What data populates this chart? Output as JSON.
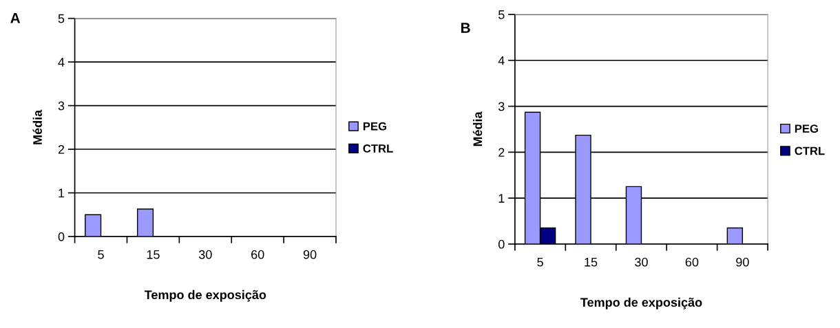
{
  "chart_data": [
    {
      "type": "bar",
      "title": "A",
      "xlabel": "Tempo de exposição",
      "ylabel": "Média",
      "categories": [
        "5",
        "15",
        "30",
        "60",
        "90"
      ],
      "series": [
        {
          "name": "PEG",
          "color": "#9999ff",
          "values": [
            0.5,
            0.63,
            0,
            0,
            0
          ]
        },
        {
          "name": "CTRL",
          "color": "#000080",
          "values": [
            0,
            0,
            0,
            0,
            0
          ]
        }
      ],
      "ylim": [
        0,
        5
      ],
      "yticks": [
        0,
        1,
        2,
        3,
        4,
        5
      ],
      "grid": "y",
      "legend": "right"
    },
    {
      "type": "bar",
      "title": "B",
      "xlabel": "Tempo de exposição",
      "ylabel": "Média",
      "categories": [
        "5",
        "15",
        "30",
        "60",
        "90"
      ],
      "series": [
        {
          "name": "PEG",
          "color": "#9999ff",
          "values": [
            2.87,
            2.37,
            1.25,
            0,
            0.35
          ]
        },
        {
          "name": "CTRL",
          "color": "#000080",
          "values": [
            0.35,
            0,
            0,
            0,
            0
          ]
        }
      ],
      "ylim": [
        0,
        5
      ],
      "yticks": [
        0,
        1,
        2,
        3,
        4,
        5
      ],
      "grid": "y",
      "legend": "right"
    }
  ]
}
